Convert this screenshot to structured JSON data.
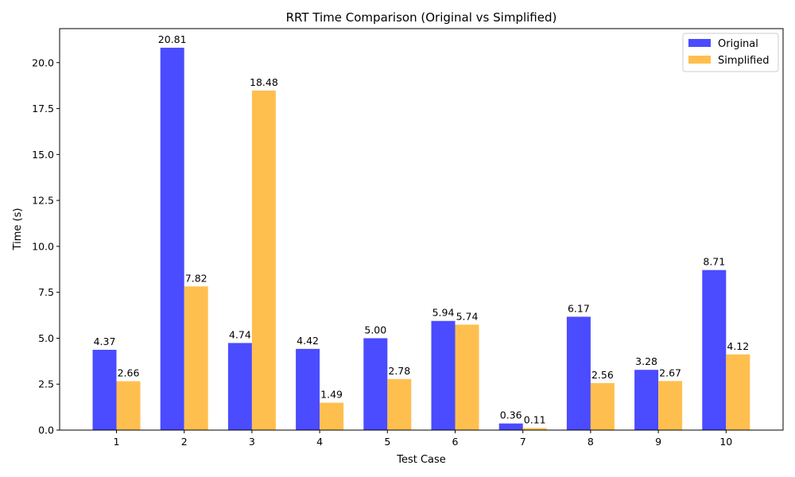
{
  "chart_data": {
    "type": "bar",
    "title": "RRT Time Comparison (Original vs Simplified)",
    "xlabel": "Test Case",
    "ylabel": "Time (s)",
    "categories": [
      "1",
      "2",
      "3",
      "4",
      "5",
      "6",
      "7",
      "8",
      "9",
      "10"
    ],
    "series": [
      {
        "name": "Original",
        "color": "#4b4bff",
        "values": [
          4.37,
          20.81,
          4.74,
          4.42,
          5.0,
          5.94,
          0.36,
          6.17,
          3.28,
          8.71
        ],
        "labels": [
          "4.37",
          "20.81",
          "4.74",
          "4.42",
          "5.00",
          "5.94",
          "0.36",
          "6.17",
          "3.28",
          "8.71"
        ]
      },
      {
        "name": "Simplified",
        "color": "#ffbf4f",
        "values": [
          2.66,
          7.82,
          18.48,
          1.49,
          2.78,
          5.74,
          0.11,
          2.56,
          2.67,
          4.12
        ],
        "labels": [
          "2.66",
          "7.82",
          "18.48",
          "1.49",
          "2.78",
          "5.74",
          "0.11",
          "2.56",
          "2.67",
          "4.12"
        ]
      }
    ],
    "ylim": [
      0,
      21.85
    ],
    "yticks": [
      "0.0",
      "2.5",
      "5.0",
      "7.5",
      "10.0",
      "12.5",
      "15.0",
      "17.5",
      "20.0"
    ],
    "ytick_values": [
      0,
      2.5,
      5,
      7.5,
      10,
      12.5,
      15,
      17.5,
      20
    ],
    "grid": false,
    "legend_position": "top-right"
  }
}
